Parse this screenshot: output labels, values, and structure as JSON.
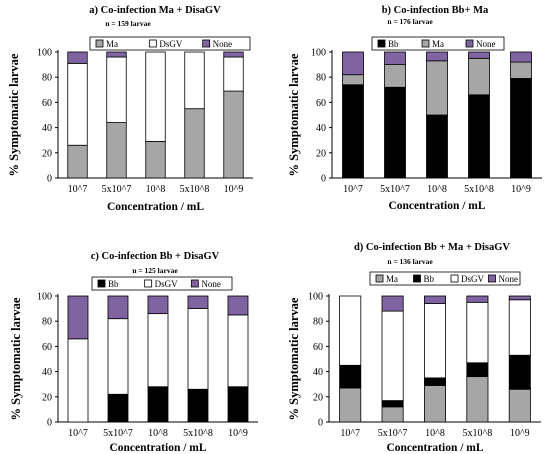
{
  "charts": [
    {
      "id": "a",
      "type": "bar",
      "stacked": true,
      "title": "a) Co-infection Ma + DisaGV",
      "subtitle": "n = 159 larvae",
      "xlabel": "Concentration / mL",
      "ylabel": "% Symptomatic larvae",
      "categories": [
        "10^7",
        "5x10^7",
        "10^8",
        "5x10^8",
        "10^9"
      ],
      "ylim": [
        0,
        100
      ],
      "yticks": [
        0,
        20,
        40,
        60,
        80,
        100
      ],
      "legend": [
        "Ma",
        "DsGV",
        "None"
      ],
      "series": [
        {
          "name": "Ma",
          "color": "#a6a6a6",
          "values": [
            26,
            44,
            29,
            55,
            69
          ]
        },
        {
          "name": "DsGV",
          "color": "#ffffff",
          "values": [
            65,
            52,
            71,
            45,
            27
          ]
        },
        {
          "name": "None",
          "color": "#8064a2",
          "values": [
            9,
            4,
            0,
            0,
            4
          ]
        }
      ]
    },
    {
      "id": "b",
      "type": "bar",
      "stacked": true,
      "title": "b) Co-infection Bb+ Ma",
      "subtitle": "n = 176 larvae",
      "xlabel": "Concentration / mL",
      "ylabel": "% Symptomatic larvae",
      "categories": [
        "10^7",
        "5x10^7",
        "10^8",
        "5x10^8",
        "10^9"
      ],
      "ylim": [
        0,
        100
      ],
      "yticks": [
        0,
        20,
        40,
        60,
        80,
        100
      ],
      "legend": [
        "Bb",
        "Ma",
        "None"
      ],
      "series": [
        {
          "name": "Bb",
          "color": "#000000",
          "values": [
            74,
            72,
            50,
            66,
            79
          ]
        },
        {
          "name": "Ma",
          "color": "#a6a6a6",
          "values": [
            8,
            18,
            43,
            29,
            13
          ]
        },
        {
          "name": "None",
          "color": "#8064a2",
          "values": [
            18,
            10,
            7,
            5,
            8
          ]
        }
      ]
    },
    {
      "id": "c",
      "type": "bar",
      "stacked": true,
      "title": "c) Co-infection Bb + DisaGV",
      "subtitle": "n = 125 larvae",
      "xlabel": "Concentration / mL",
      "ylabel": "% Symptomatic larvae",
      "categories": [
        "10^7",
        "5x10^7",
        "10^8",
        "5x10^8",
        "10^9"
      ],
      "ylim": [
        0,
        100
      ],
      "yticks": [
        0,
        20,
        40,
        60,
        80,
        100
      ],
      "legend": [
        "Bb",
        "DsGV",
        "None"
      ],
      "series": [
        {
          "name": "Bb",
          "color": "#000000",
          "values": [
            0,
            22,
            28,
            26,
            28
          ]
        },
        {
          "name": "DsGV",
          "color": "#ffffff",
          "values": [
            66,
            60,
            58,
            64,
            57
          ]
        },
        {
          "name": "None",
          "color": "#8064a2",
          "values": [
            34,
            18,
            14,
            10,
            15
          ]
        }
      ]
    },
    {
      "id": "d",
      "type": "bar",
      "stacked": true,
      "title": "d) Co-infection Bb + Ma + DisaGV",
      "subtitle": "n = 136 larvae",
      "xlabel": "Concentration / mL",
      "ylabel": "% Symptomatic larvae",
      "categories": [
        "10^7",
        "5x10^7",
        "10^8",
        "5x10^8",
        "10^9"
      ],
      "ylim": [
        0,
        100
      ],
      "yticks": [
        0,
        20,
        40,
        60,
        80,
        100
      ],
      "legend": [
        "Ma",
        "Bb",
        "DsGV",
        "None"
      ],
      "series": [
        {
          "name": "Ma",
          "color": "#a6a6a6",
          "values": [
            27,
            12,
            29,
            36,
            26
          ]
        },
        {
          "name": "Bb",
          "color": "#000000",
          "values": [
            18,
            5,
            6,
            11,
            27
          ]
        },
        {
          "name": "DsGV",
          "color": "#ffffff",
          "values": [
            55,
            71,
            59,
            48,
            44
          ]
        },
        {
          "name": "None",
          "color": "#8064a2",
          "values": [
            0,
            12,
            6,
            5,
            3
          ]
        }
      ]
    }
  ]
}
